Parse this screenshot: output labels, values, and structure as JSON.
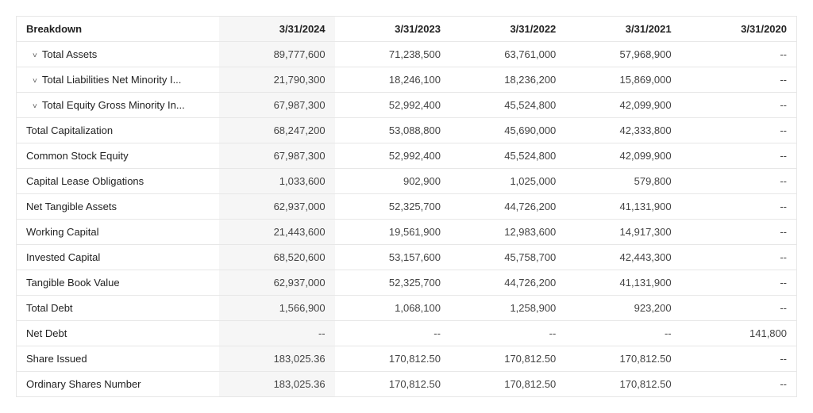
{
  "table": {
    "header": {
      "breakdown": "Breakdown",
      "dates": [
        "3/31/2024",
        "3/31/2023",
        "3/31/2022",
        "3/31/2021",
        "3/31/2020"
      ]
    },
    "shaded_date_columns": [
      0
    ],
    "rows": [
      {
        "label": "Total Assets",
        "expandable": true,
        "values": [
          "89,777,600",
          "71,238,500",
          "63,761,000",
          "57,968,900",
          "--"
        ]
      },
      {
        "label": "Total Liabilities Net Minority I...",
        "expandable": true,
        "values": [
          "21,790,300",
          "18,246,100",
          "18,236,200",
          "15,869,000",
          "--"
        ]
      },
      {
        "label": "Total Equity Gross Minority In...",
        "expandable": true,
        "values": [
          "67,987,300",
          "52,992,400",
          "45,524,800",
          "42,099,900",
          "--"
        ]
      },
      {
        "label": "Total Capitalization",
        "expandable": false,
        "values": [
          "68,247,200",
          "53,088,800",
          "45,690,000",
          "42,333,800",
          "--"
        ]
      },
      {
        "label": "Common Stock Equity",
        "expandable": false,
        "values": [
          "67,987,300",
          "52,992,400",
          "45,524,800",
          "42,099,900",
          "--"
        ]
      },
      {
        "label": "Capital Lease Obligations",
        "expandable": false,
        "values": [
          "1,033,600",
          "902,900",
          "1,025,000",
          "579,800",
          "--"
        ]
      },
      {
        "label": "Net Tangible Assets",
        "expandable": false,
        "values": [
          "62,937,000",
          "52,325,700",
          "44,726,200",
          "41,131,900",
          "--"
        ]
      },
      {
        "label": "Working Capital",
        "expandable": false,
        "values": [
          "21,443,600",
          "19,561,900",
          "12,983,600",
          "14,917,300",
          "--"
        ]
      },
      {
        "label": "Invested Capital",
        "expandable": false,
        "values": [
          "68,520,600",
          "53,157,600",
          "45,758,700",
          "42,443,300",
          "--"
        ]
      },
      {
        "label": "Tangible Book Value",
        "expandable": false,
        "values": [
          "62,937,000",
          "52,325,700",
          "44,726,200",
          "41,131,900",
          "--"
        ]
      },
      {
        "label": "Total Debt",
        "expandable": false,
        "values": [
          "1,566,900",
          "1,068,100",
          "1,258,900",
          "923,200",
          "--"
        ]
      },
      {
        "label": "Net Debt",
        "expandable": false,
        "values": [
          "--",
          "--",
          "--",
          "--",
          "141,800"
        ]
      },
      {
        "label": "Share Issued",
        "expandable": false,
        "values": [
          "183,025.36",
          "170,812.50",
          "170,812.50",
          "170,812.50",
          "--"
        ]
      },
      {
        "label": "Ordinary Shares Number",
        "expandable": false,
        "values": [
          "183,025.36",
          "170,812.50",
          "170,812.50",
          "170,812.50",
          "--"
        ]
      }
    ],
    "colors": {
      "border": "#e7e7e7",
      "shaded_bg": "#f6f6f6",
      "text": "#333333",
      "background": "#ffffff"
    },
    "font_size_pt": 13
  }
}
